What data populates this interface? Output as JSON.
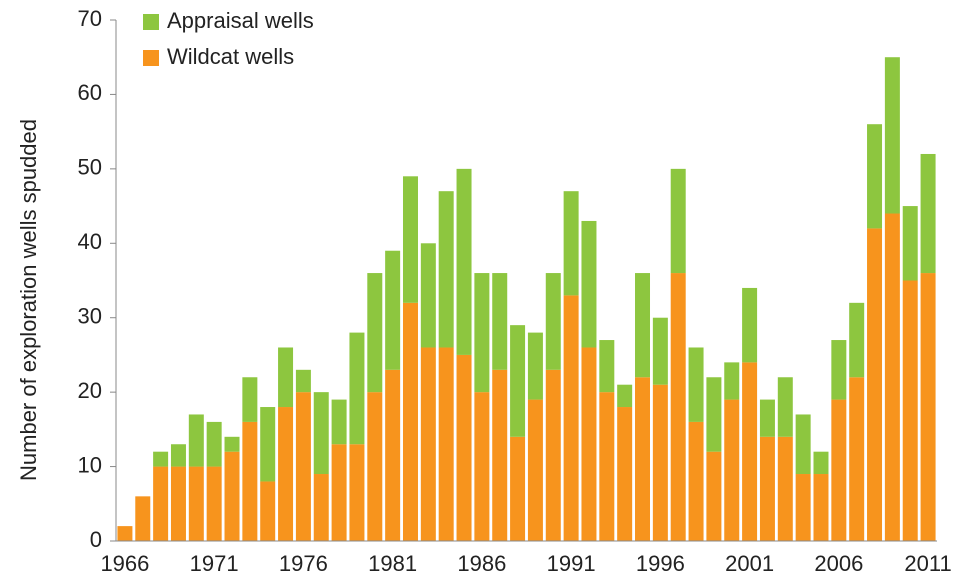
{
  "chart_data": {
    "type": "stacked_bar",
    "y_label": "Number of exploration wells spudded",
    "categories": [
      "1966",
      null,
      null,
      null,
      null,
      "1971",
      null,
      null,
      null,
      null,
      "1976",
      null,
      null,
      null,
      null,
      "1981",
      null,
      null,
      null,
      null,
      "1986",
      null,
      null,
      null,
      null,
      "1991",
      null,
      null,
      null,
      null,
      "1996",
      null,
      null,
      null,
      null,
      "2001",
      null,
      null,
      null,
      null,
      "2006",
      null,
      null,
      null,
      null,
      "2011"
    ],
    "series": [
      {
        "name": "Wildcat wells",
        "color": "#f7941d",
        "values": [
          2,
          6,
          10,
          10,
          10,
          10,
          12,
          16,
          8,
          18,
          20,
          9,
          13,
          13,
          20,
          23,
          32,
          26,
          26,
          25,
          20,
          23,
          14,
          19,
          23,
          33,
          26,
          20,
          18,
          22,
          21,
          36,
          16,
          12,
          19,
          24,
          14,
          14,
          9,
          9,
          19,
          22,
          42,
          44,
          35,
          36
        ]
      },
      {
        "name": "Appraisal wells",
        "color": "#8dc63f",
        "values": [
          0,
          0,
          2,
          3,
          7,
          6,
          2,
          6,
          10,
          8,
          3,
          11,
          6,
          15,
          16,
          16,
          17,
          14,
          21,
          25,
          16,
          13,
          15,
          9,
          13,
          14,
          17,
          7,
          3,
          14,
          9,
          14,
          10,
          10,
          5,
          10,
          5,
          8,
          8,
          3,
          8,
          10,
          14,
          21,
          10,
          16
        ]
      }
    ],
    "ylim": [
      0,
      70
    ],
    "yticks": [
      0,
      10,
      20,
      30,
      40,
      50,
      60,
      70
    ],
    "grid": false,
    "legend": "top-left"
  }
}
